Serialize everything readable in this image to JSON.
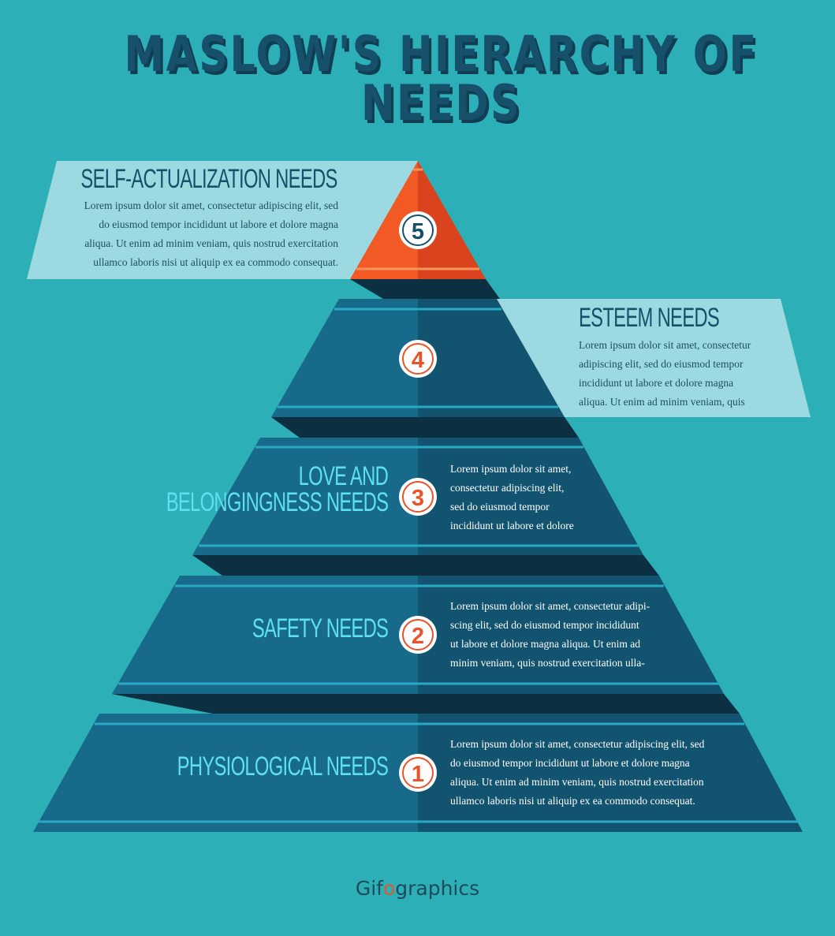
{
  "title": "MASLOW'S HIERARCHY OF NEEDS",
  "levels": [
    {
      "number": "5",
      "name": "SELF-ACTUALIZATION NEEDS",
      "text": [
        "Lorem ipsum dolor sit amet, consectetur adipiscing elit, sed",
        "do eiusmod tempor incididunt ut labore et dolore magna",
        "aliqua. Ut enim ad minim veniam, quis nostrud exercitation",
        "ullamco laboris nisi ut aliquip ex ea commodo consequat."
      ]
    },
    {
      "number": "4",
      "name": "ESTEEM NEEDS",
      "text": [
        "Lorem ipsum dolor sit amet, consectetur",
        "adipiscing elit, sed do eiusmod tempor",
        "incididunt ut labore et dolore magna",
        "aliqua. Ut enim ad minim veniam, quis"
      ]
    },
    {
      "number": "3",
      "name_lines": [
        "LOVE AND",
        "BELONGINGNESS NEEDS"
      ],
      "text": [
        "Lorem ipsum dolor sit amet,",
        "consectetur adipiscing elit,",
        "sed do eiusmod tempor",
        "incididunt ut labore et dolore"
      ]
    },
    {
      "number": "2",
      "name": "SAFETY NEEDS",
      "text": [
        "Lorem ipsum dolor sit amet, consectetur adipi-",
        "scing elit, sed do eiusmod tempor incididunt",
        "ut labore et dolore magna aliqua. Ut enim ad",
        "minim veniam, quis nostrud exercitation ulla-"
      ]
    },
    {
      "number": "1",
      "name": "PHYSIOLOGICAL NEEDS",
      "text": [
        "Lorem ipsum dolor sit amet, consectetur adipiscing elit, sed",
        "do eiusmod tempor incididunt ut labore et dolore magna",
        "aliqua. Ut enim ad minim veniam, quis nostrud exercitation",
        "ullamco laboris nisi ut aliquip ex ea commodo consequat."
      ]
    }
  ],
  "brand": {
    "before": "Gif",
    "dot": "o",
    "after": "graphics"
  },
  "colors": {
    "background": "#2cafb6",
    "tier_left": "#176a89",
    "tier_right": "#125470",
    "tier_shadow": "#0c2f42",
    "accent_line": "#2aa9c6",
    "top_left": "#f15a24",
    "top_right": "#d9441f",
    "callout": "#9dd9e0",
    "heading_light": "#5ee0ee",
    "heading_dark": "#17506a",
    "number_orange": "#e8532a"
  }
}
